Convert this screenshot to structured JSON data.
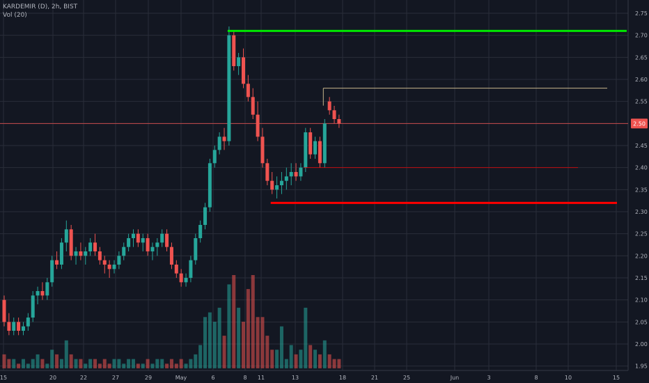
{
  "header": {
    "symbol_line": "KARDEMIR (D), 2h, BIST",
    "volume_label": "Vol (20)"
  },
  "colors": {
    "background": "#131722",
    "grid": "#2a2e39",
    "axis_text": "#b2b5be",
    "up": "#26a69a",
    "down": "#ef5350",
    "vol_up": "#26a69a",
    "vol_down": "#ef5350",
    "last_price_line": "#ef5350",
    "resistance_line": "#00e600",
    "target_line": "#c8b68c",
    "support_line": "#ff0000"
  },
  "chart_data": {
    "type": "candlestick",
    "y_axis": {
      "ticks": [
        "1.95",
        "2.00",
        "2.05",
        "2.10",
        "2.15",
        "2.20",
        "2.25",
        "2.30",
        "2.35",
        "2.40",
        "2.45",
        "2.50",
        "2.55",
        "2.60",
        "2.65",
        "2.70",
        "2.75"
      ],
      "min": 1.94,
      "max": 2.78
    },
    "x_axis": {
      "ticks": [
        "15",
        "20",
        "22",
        "27",
        "29",
        "May",
        "6",
        "8",
        "11",
        "13",
        "18",
        "21",
        "25",
        "Jun",
        "3",
        "8",
        "10",
        "15"
      ]
    },
    "last_price": {
      "value": 2.5,
      "label": "2.50"
    },
    "candles": [
      [
        2.1,
        2.11,
        2.04,
        2.05
      ],
      [
        2.05,
        2.07,
        2.02,
        2.03
      ],
      [
        2.03,
        2.06,
        2.02,
        2.05
      ],
      [
        2.05,
        2.06,
        2.02,
        2.03
      ],
      [
        2.03,
        2.05,
        2.02,
        2.04
      ],
      [
        2.04,
        2.07,
        2.03,
        2.06
      ],
      [
        2.06,
        2.12,
        2.05,
        2.11
      ],
      [
        2.11,
        2.13,
        2.09,
        2.12
      ],
      [
        2.12,
        2.14,
        2.1,
        2.11
      ],
      [
        2.11,
        2.15,
        2.1,
        2.14
      ],
      [
        2.14,
        2.2,
        2.13,
        2.19
      ],
      [
        2.19,
        2.21,
        2.17,
        2.18
      ],
      [
        2.18,
        2.24,
        2.17,
        2.23
      ],
      [
        2.23,
        2.28,
        2.21,
        2.26
      ],
      [
        2.26,
        2.27,
        2.19,
        2.2
      ],
      [
        2.2,
        2.22,
        2.18,
        2.21
      ],
      [
        2.21,
        2.23,
        2.19,
        2.2
      ],
      [
        2.2,
        2.22,
        2.18,
        2.21
      ],
      [
        2.21,
        2.24,
        2.2,
        2.23
      ],
      [
        2.23,
        2.25,
        2.2,
        2.21
      ],
      [
        2.21,
        2.22,
        2.18,
        2.19
      ],
      [
        2.19,
        2.2,
        2.16,
        2.18
      ],
      [
        2.18,
        2.19,
        2.15,
        2.17
      ],
      [
        2.17,
        2.19,
        2.16,
        2.18
      ],
      [
        2.18,
        2.21,
        2.17,
        2.2
      ],
      [
        2.2,
        2.23,
        2.19,
        2.22
      ],
      [
        2.22,
        2.25,
        2.21,
        2.24
      ],
      [
        2.24,
        2.26,
        2.22,
        2.25
      ],
      [
        2.25,
        2.26,
        2.22,
        2.23
      ],
      [
        2.23,
        2.25,
        2.21,
        2.24
      ],
      [
        2.24,
        2.25,
        2.2,
        2.21
      ],
      [
        2.21,
        2.23,
        2.19,
        2.22
      ],
      [
        2.22,
        2.24,
        2.2,
        2.23
      ],
      [
        2.23,
        2.26,
        2.22,
        2.25
      ],
      [
        2.25,
        2.26,
        2.21,
        2.22
      ],
      [
        2.22,
        2.23,
        2.17,
        2.18
      ],
      [
        2.18,
        2.19,
        2.15,
        2.16
      ],
      [
        2.16,
        2.17,
        2.13,
        2.14
      ],
      [
        2.14,
        2.16,
        2.13,
        2.15
      ],
      [
        2.15,
        2.2,
        2.14,
        2.19
      ],
      [
        2.19,
        2.25,
        2.18,
        2.24
      ],
      [
        2.24,
        2.28,
        2.23,
        2.27
      ],
      [
        2.27,
        2.32,
        2.26,
        2.31
      ],
      [
        2.31,
        2.42,
        2.3,
        2.41
      ],
      [
        2.41,
        2.45,
        2.4,
        2.44
      ],
      [
        2.44,
        2.48,
        2.43,
        2.47
      ],
      [
        2.47,
        2.49,
        2.44,
        2.46
      ],
      [
        2.46,
        2.72,
        2.45,
        2.7
      ],
      [
        2.7,
        2.71,
        2.62,
        2.63
      ],
      [
        2.63,
        2.66,
        2.61,
        2.65
      ],
      [
        2.65,
        2.67,
        2.58,
        2.59
      ],
      [
        2.59,
        2.61,
        2.55,
        2.56
      ],
      [
        2.56,
        2.58,
        2.51,
        2.52
      ],
      [
        2.52,
        2.55,
        2.46,
        2.47
      ],
      [
        2.47,
        2.49,
        2.4,
        2.41
      ],
      [
        2.41,
        2.42,
        2.36,
        2.37
      ],
      [
        2.37,
        2.39,
        2.34,
        2.35
      ],
      [
        2.35,
        2.38,
        2.33,
        2.36
      ],
      [
        2.36,
        2.39,
        2.34,
        2.37
      ],
      [
        2.37,
        2.4,
        2.35,
        2.38
      ],
      [
        2.38,
        2.41,
        2.36,
        2.39
      ],
      [
        2.39,
        2.41,
        2.37,
        2.38
      ],
      [
        2.38,
        2.41,
        2.37,
        2.4
      ],
      [
        2.4,
        2.49,
        2.39,
        2.48
      ],
      [
        2.48,
        2.49,
        2.42,
        2.43
      ],
      [
        2.43,
        2.47,
        2.42,
        2.46
      ],
      [
        2.46,
        2.47,
        2.4,
        2.41
      ],
      [
        2.41,
        2.51,
        2.4,
        2.5
      ],
      [
        2.55,
        2.56,
        2.52,
        2.53
      ],
      [
        2.53,
        2.54,
        2.5,
        2.51
      ],
      [
        2.51,
        2.52,
        2.49,
        2.5
      ]
    ],
    "volume": [
      3,
      2,
      2,
      1,
      2,
      1,
      2,
      3,
      2,
      1,
      4,
      3,
      2,
      6,
      3,
      2,
      2,
      1,
      2,
      2,
      1,
      2,
      1,
      2,
      2,
      1,
      2,
      2,
      1,
      1,
      2,
      1,
      2,
      2,
      1,
      2,
      1,
      2,
      1,
      2,
      3,
      5,
      11,
      12,
      10,
      13,
      7,
      18,
      20,
      13,
      10,
      17,
      20,
      11,
      11,
      7,
      4,
      4,
      9,
      2,
      5,
      3,
      4,
      13,
      5,
      4,
      3,
      6,
      3,
      2,
      2
    ],
    "annotations": [
      {
        "type": "horizontal-segment",
        "name": "resistance",
        "value": 2.71,
        "x_from_index": 47,
        "x_to": "end"
      },
      {
        "type": "horizontal-segment",
        "name": "target",
        "value": 2.58,
        "x_from_index": 67,
        "x_to": "late"
      },
      {
        "type": "horizontal-segment",
        "name": "support",
        "value": 2.4,
        "x_from_index": 63,
        "x_to": "mid"
      },
      {
        "type": "horizontal-segment",
        "name": "stop",
        "value": 2.32,
        "x_from_index": 56,
        "x_to": "late"
      }
    ]
  }
}
